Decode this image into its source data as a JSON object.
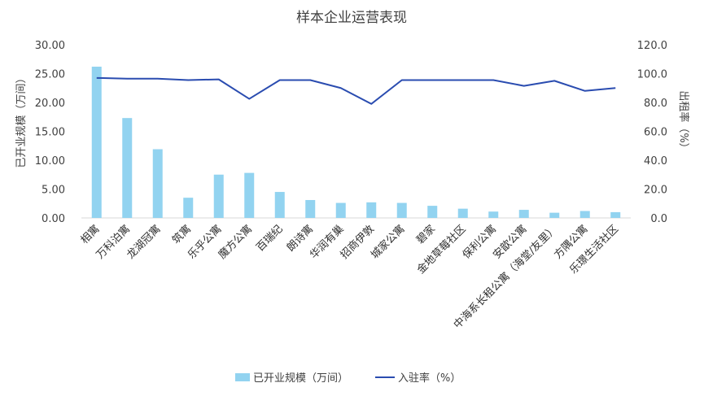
{
  "chart_data": {
    "type": "bar",
    "title": "样本企业运营表现",
    "categories": [
      "相寓",
      "万科泊寓",
      "龙湖冠寓",
      "筑寓",
      "乐乎公寓",
      "魔方公寓",
      "百瑞纪",
      "朗诗寓",
      "华润有巢",
      "招商伊敦",
      "城家公寓",
      "碧家",
      "金地草莓社区",
      "保利公寓",
      "安歆公寓",
      "中海系长租公寓（海堂/友里）",
      "方隅公寓",
      "乐璟生活社区"
    ],
    "series": [
      {
        "name": "已开业规模（万间）",
        "type": "bar",
        "axis": "left",
        "color": "#92D3F0",
        "values": [
          26.2,
          17.3,
          11.9,
          3.5,
          7.5,
          7.8,
          4.5,
          3.1,
          2.6,
          2.7,
          2.6,
          2.1,
          1.6,
          1.1,
          1.4,
          0.9,
          1.2,
          1.0
        ]
      },
      {
        "name": "入驻率（%）",
        "type": "line",
        "axis": "right",
        "color": "#2A4CB0",
        "values": [
          97,
          96.5,
          96.5,
          95.5,
          96,
          82.5,
          95.5,
          95.5,
          90,
          79,
          95.5,
          95.5,
          95.5,
          95.5,
          91.5,
          95,
          88,
          90
        ]
      }
    ],
    "ylabel": "已开业规模（万间）",
    "y2label": "出租率（%）",
    "ylim": [
      0,
      30
    ],
    "y2lim": [
      0,
      120
    ],
    "yticks": [
      "0.00",
      "5.00",
      "10.00",
      "15.00",
      "20.00",
      "25.00",
      "30.00"
    ],
    "y2ticks": [
      "0.0",
      "20.0",
      "40.0",
      "60.0",
      "80.0",
      "100.0",
      "120.0"
    ],
    "legend_position": "bottom",
    "grid": false
  }
}
